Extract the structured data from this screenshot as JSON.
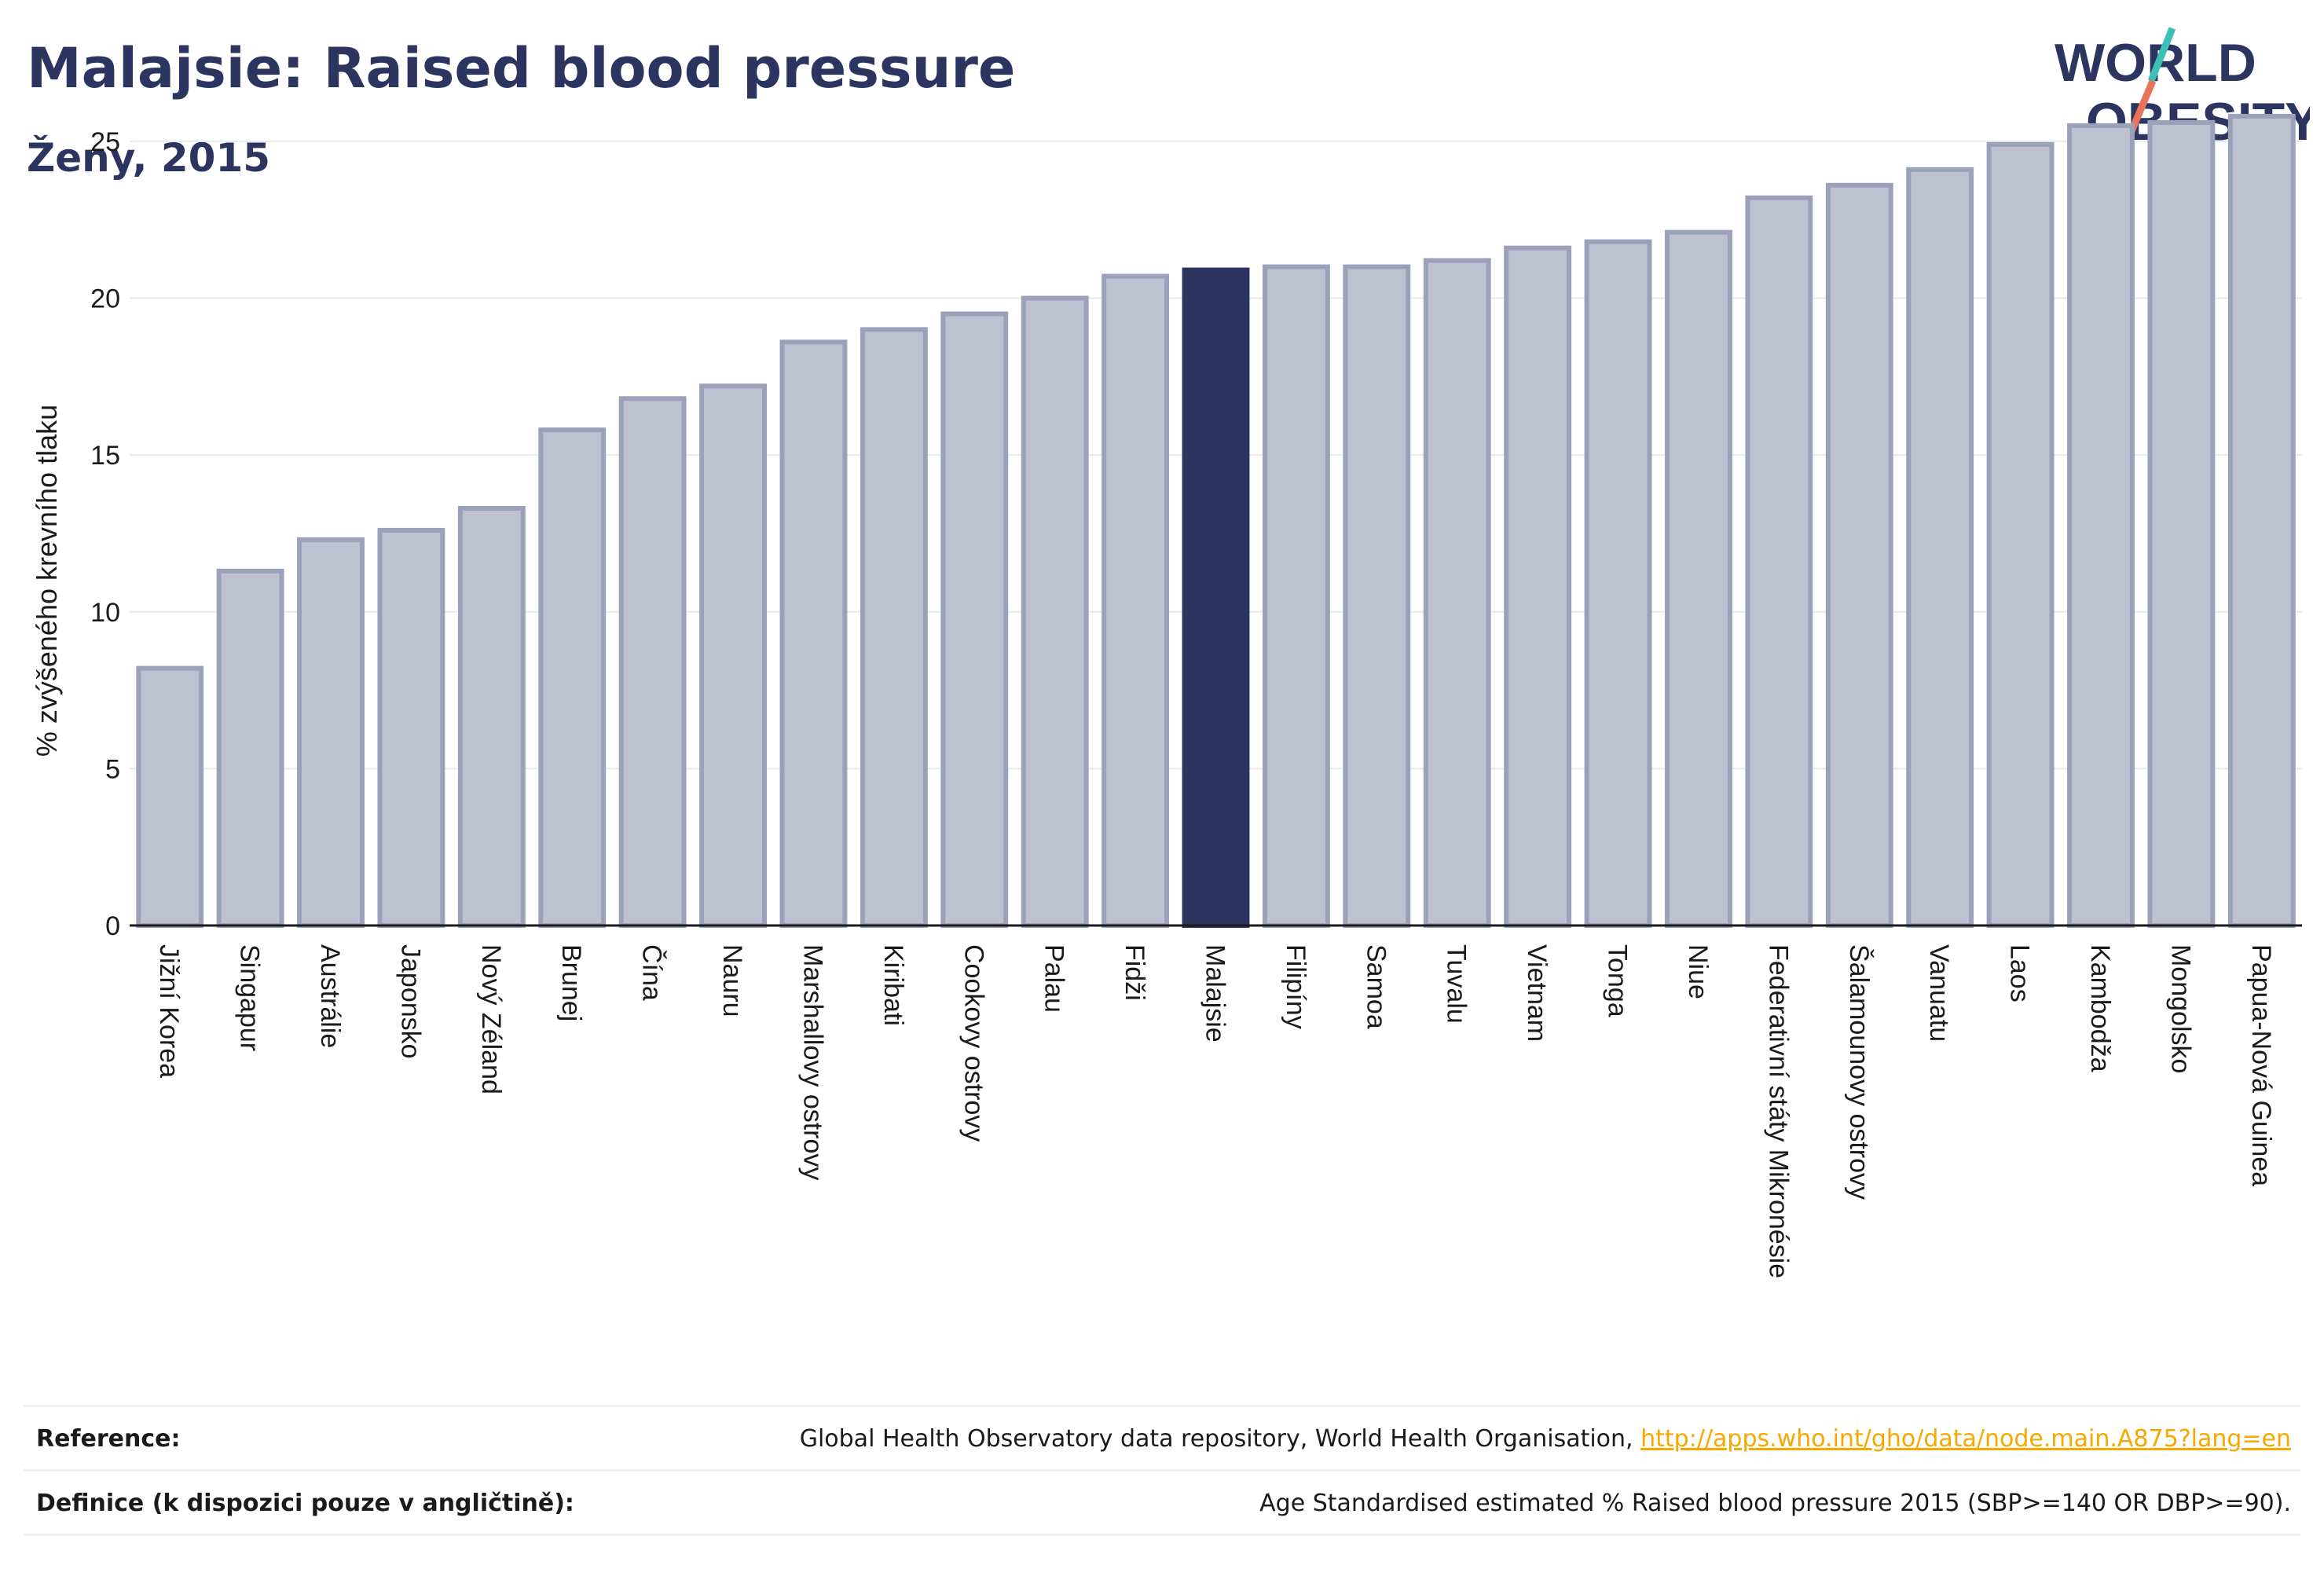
{
  "header": {
    "title": "Malajsie: Raised blood pressure",
    "subtitle": "Ženy, 2015"
  },
  "logo": {
    "line1": "WORLD",
    "line2": "OBESITY",
    "colors": {
      "text": "#2b3560",
      "slash_top": "#3bbfb6",
      "slash_bottom": "#e8735a"
    }
  },
  "chart_data": {
    "type": "bar",
    "ylabel": "% zvýšeného krevního tlaku",
    "ylim": [
      0,
      26.5
    ],
    "yticks": [
      0,
      5,
      10,
      15,
      20,
      25
    ],
    "grid": true,
    "highlight": "Malajsie",
    "colors": {
      "bar": "#bec2d0",
      "bar_edge": "#9ba1b9",
      "highlight": "#2b3560"
    },
    "categories": [
      "Jižní Korea",
      "Singapur",
      "Austrálie",
      "Japonsko",
      "Nový Zéland",
      "Brunej",
      "Čína",
      "Nauru",
      "Marshallovy ostrovy",
      "Kiribati",
      "Cookovy ostrovy",
      "Palau",
      "Fidži",
      "Malajsie",
      "Filipíny",
      "Samoa",
      "Tuvalu",
      "Vietnam",
      "Tonga",
      "Niue",
      "Federativní státy Mikronésie",
      "Šalamounovy ostrovy",
      "Vanuatu",
      "Laos",
      "Kambodža",
      "Mongolsko",
      "Papua-Nová Guinea"
    ],
    "values": [
      8.2,
      11.3,
      12.3,
      12.6,
      13.3,
      15.8,
      16.8,
      17.2,
      18.6,
      19.0,
      19.5,
      20.0,
      20.7,
      20.9,
      21.0,
      21.0,
      21.2,
      21.6,
      21.8,
      22.1,
      23.2,
      23.6,
      24.1,
      24.9,
      25.5,
      25.6,
      25.8
    ]
  },
  "footer": {
    "reference_label": "Reference:",
    "reference_text": "Global Health Observatory data repository, World Health Organisation,",
    "reference_link": "http://apps.who.int/gho/data/node.main.A875?lang=en",
    "definition_label": "Definice (k dispozici pouze v angličtině):",
    "definition_text": "Age Standardised estimated % Raised blood pressure 2015 (SBP>=140 OR DBP>=90)."
  }
}
